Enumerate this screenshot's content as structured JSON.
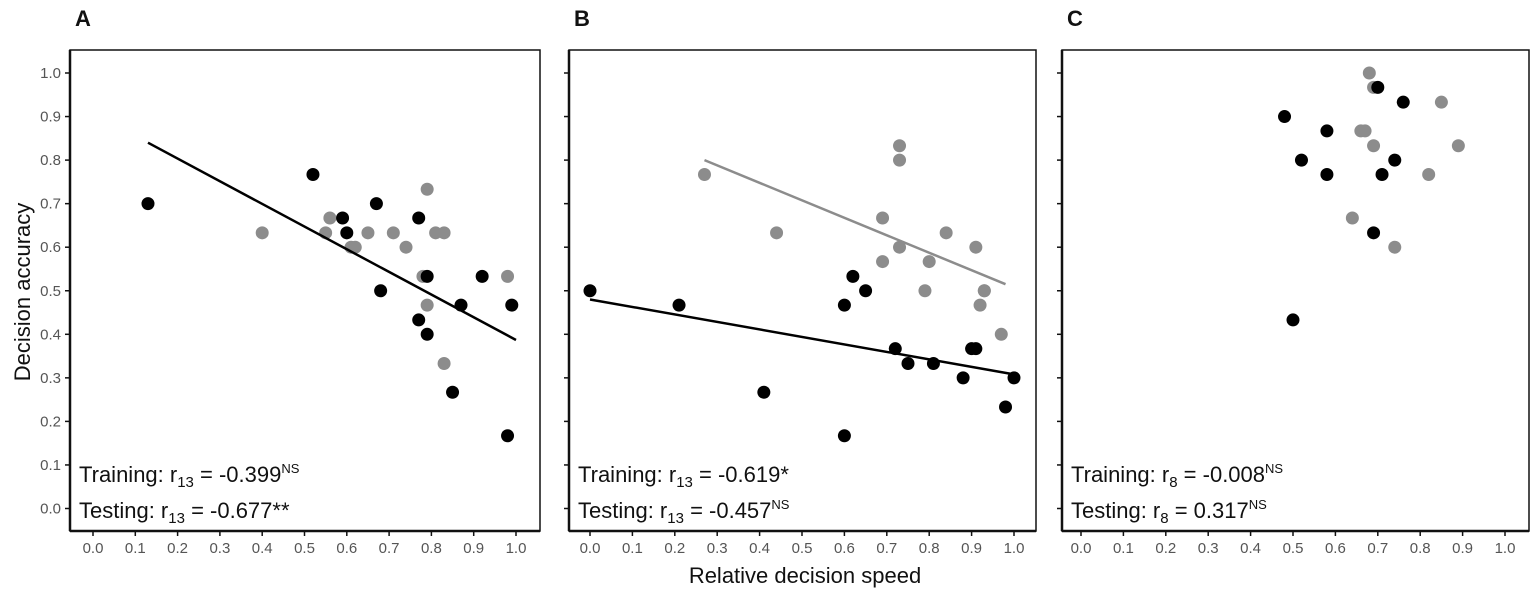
{
  "figure": {
    "xlabel": "Relative decision speed",
    "ylabel": "Decision accuracy"
  },
  "colors": {
    "training": "#000000",
    "testing": "#8c8c8c",
    "axis": "#111111"
  },
  "chart_data": [
    {
      "type": "scatter",
      "panel": "A",
      "xlim": [
        0.0,
        1.0
      ],
      "ylim": [
        0.0,
        1.0
      ],
      "xticks": [
        "0.0",
        "0.1",
        "0.2",
        "0.3",
        "0.4",
        "0.5",
        "0.6",
        "0.7",
        "0.8",
        "0.9",
        "1.0"
      ],
      "yticks": [
        "0.0",
        "0.1",
        "0.2",
        "0.3",
        "0.4",
        "0.5",
        "0.6",
        "0.7",
        "0.8",
        "0.9",
        "1.0"
      ],
      "series": [
        {
          "name": "Training",
          "color": "#000000",
          "points": [
            [
              0.13,
              0.7
            ],
            [
              0.52,
              0.767
            ],
            [
              0.59,
              0.667
            ],
            [
              0.6,
              0.633
            ],
            [
              0.67,
              0.7
            ],
            [
              0.68,
              0.5
            ],
            [
              0.77,
              0.667
            ],
            [
              0.77,
              0.433
            ],
            [
              0.79,
              0.533
            ],
            [
              0.79,
              0.4
            ],
            [
              0.87,
              0.467
            ],
            [
              0.85,
              0.267
            ],
            [
              0.92,
              0.533
            ],
            [
              0.98,
              0.167
            ],
            [
              0.99,
              0.467
            ]
          ],
          "fit": [
            [
              0.13,
              0.84
            ],
            [
              1.0,
              0.387
            ]
          ]
        },
        {
          "name": "Testing",
          "color": "#8c8c8c",
          "points": [
            [
              0.4,
              0.633
            ],
            [
              0.55,
              0.633
            ],
            [
              0.56,
              0.667
            ],
            [
              0.61,
              0.6
            ],
            [
              0.62,
              0.6
            ],
            [
              0.65,
              0.633
            ],
            [
              0.71,
              0.633
            ],
            [
              0.74,
              0.6
            ],
            [
              0.78,
              0.533
            ],
            [
              0.79,
              0.733
            ],
            [
              0.79,
              0.467
            ],
            [
              0.81,
              0.633
            ],
            [
              0.83,
              0.633
            ],
            [
              0.83,
              0.333
            ],
            [
              0.98,
              0.533
            ]
          ]
        }
      ],
      "annotations": [
        {
          "label": "Training: r",
          "sub": "13",
          "value": " = -0.399",
          "sup": "NS"
        },
        {
          "label": "Testing: r",
          "sub": "13",
          "value": " = -0.677**",
          "sup": ""
        }
      ]
    },
    {
      "type": "scatter",
      "panel": "B",
      "xlim": [
        0.0,
        1.0
      ],
      "ylim": [
        0.0,
        1.0
      ],
      "xticks": [
        "0.0",
        "0.1",
        "0.2",
        "0.3",
        "0.4",
        "0.5",
        "0.6",
        "0.7",
        "0.8",
        "0.9",
        "1.0"
      ],
      "yticks": [],
      "series": [
        {
          "name": "Training",
          "color": "#000000",
          "points": [
            [
              0.0,
              0.5
            ],
            [
              0.21,
              0.467
            ],
            [
              0.41,
              0.267
            ],
            [
              0.6,
              0.467
            ],
            [
              0.6,
              0.167
            ],
            [
              0.62,
              0.533
            ],
            [
              0.65,
              0.5
            ],
            [
              0.72,
              0.367
            ],
            [
              0.75,
              0.333
            ],
            [
              0.81,
              0.333
            ],
            [
              0.88,
              0.3
            ],
            [
              0.9,
              0.367
            ],
            [
              0.91,
              0.367
            ],
            [
              0.98,
              0.233
            ],
            [
              1.0,
              0.3
            ]
          ],
          "fit": [
            [
              0.0,
              0.48
            ],
            [
              1.0,
              0.308
            ]
          ]
        },
        {
          "name": "Testing",
          "color": "#8c8c8c",
          "points": [
            [
              0.27,
              0.767
            ],
            [
              0.44,
              0.633
            ],
            [
              0.69,
              0.667
            ],
            [
              0.69,
              0.567
            ],
            [
              0.73,
              0.833
            ],
            [
              0.73,
              0.8
            ],
            [
              0.73,
              0.6
            ],
            [
              0.79,
              0.5
            ],
            [
              0.8,
              0.567
            ],
            [
              0.84,
              0.633
            ],
            [
              0.91,
              0.6
            ],
            [
              0.92,
              0.467
            ],
            [
              0.93,
              0.5
            ],
            [
              0.93,
              0.5
            ],
            [
              0.97,
              0.4
            ]
          ],
          "fit": [
            [
              0.27,
              0.8
            ],
            [
              0.98,
              0.515
            ]
          ]
        }
      ],
      "annotations": [
        {
          "label": "Training: r",
          "sub": "13",
          "value": " = -0.619*",
          "sup": ""
        },
        {
          "label": "Testing: r",
          "sub": "13",
          "value": "  = -0.457",
          "sup": "NS"
        }
      ]
    },
    {
      "type": "scatter",
      "panel": "C",
      "xlim": [
        0.0,
        1.0
      ],
      "ylim": [
        0.0,
        1.0
      ],
      "xticks": [
        "0.0",
        "0.1",
        "0.2",
        "0.3",
        "0.4",
        "0.5",
        "0.6",
        "0.7",
        "0.8",
        "0.9",
        "1.0"
      ],
      "yticks": [],
      "series": [
        {
          "name": "Training",
          "color": "#000000",
          "points": [
            [
              0.48,
              0.9
            ],
            [
              0.5,
              0.433
            ],
            [
              0.52,
              0.8
            ],
            [
              0.58,
              0.867
            ],
            [
              0.58,
              0.767
            ],
            [
              0.69,
              0.633
            ],
            [
              0.7,
              0.967
            ],
            [
              0.71,
              0.767
            ],
            [
              0.74,
              0.8
            ],
            [
              0.76,
              0.933
            ]
          ]
        },
        {
          "name": "Testing",
          "color": "#8c8c8c",
          "points": [
            [
              0.64,
              0.667
            ],
            [
              0.66,
              0.867
            ],
            [
              0.67,
              0.867
            ],
            [
              0.68,
              1.0
            ],
            [
              0.69,
              0.967
            ],
            [
              0.69,
              0.833
            ],
            [
              0.74,
              0.6
            ],
            [
              0.82,
              0.767
            ],
            [
              0.85,
              0.933
            ],
            [
              0.89,
              0.833
            ]
          ]
        }
      ],
      "annotations": [
        {
          "label": "Training: r",
          "sub": "8",
          "value": " = -0.008",
          "sup": "NS"
        },
        {
          "label": "Testing: r",
          "sub": "8",
          "value": " = 0.317",
          "sup": "NS"
        }
      ]
    }
  ]
}
